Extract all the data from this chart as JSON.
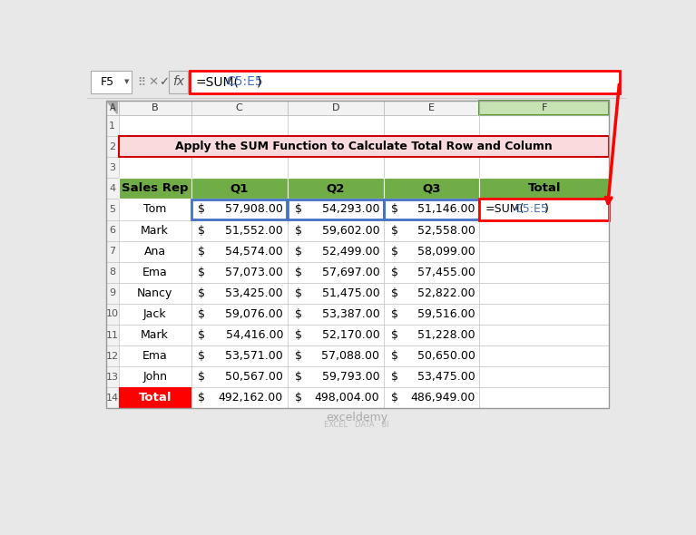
{
  "title": "Apply the SUM Function to Calculate Total Row and Column",
  "title_bg": "#FADADD",
  "title_border": "#CC0000",
  "header_bg": "#70AD47",
  "total_row_bg": "#FF0000",
  "formula_ref_color": "#4472C4",
  "col_headers": [
    "Sales Rep",
    "Q1",
    "Q2",
    "Q3",
    "Total"
  ],
  "data_rows": [
    [
      "Tom",
      "57,908.00",
      "54,293.00",
      "51,146.00"
    ],
    [
      "Mark",
      "51,552.00",
      "59,602.00",
      "52,558.00"
    ],
    [
      "Ana",
      "54,574.00",
      "52,499.00",
      "58,099.00"
    ],
    [
      "Ema",
      "57,073.00",
      "57,697.00",
      "57,455.00"
    ],
    [
      "Nancy",
      "53,425.00",
      "51,475.00",
      "52,822.00"
    ],
    [
      "Jack",
      "59,076.00",
      "53,387.00",
      "59,516.00"
    ],
    [
      "Mark",
      "54,416.00",
      "52,170.00",
      "51,228.00"
    ],
    [
      "Ema",
      "53,571.00",
      "57,088.00",
      "50,650.00"
    ],
    [
      "John",
      "50,567.00",
      "59,793.00",
      "53,475.00"
    ]
  ],
  "total_row": [
    "Total",
    "492,162.00",
    "498,004.00",
    "486,949.00"
  ],
  "formula_bar_cell": "F5",
  "grid_color": "#BFBFBF",
  "bg_color": "#E8E8E8",
  "white": "#FFFFFF",
  "light_gray": "#F2F2F2",
  "green_header": "#70AD47",
  "col_f_highlight": "#DAEEF3",
  "blue_border": "#4472C4",
  "red": "#FF0000",
  "watermark_text": "exceldemy",
  "watermark_sub": "EXCEL · DATA · BI"
}
